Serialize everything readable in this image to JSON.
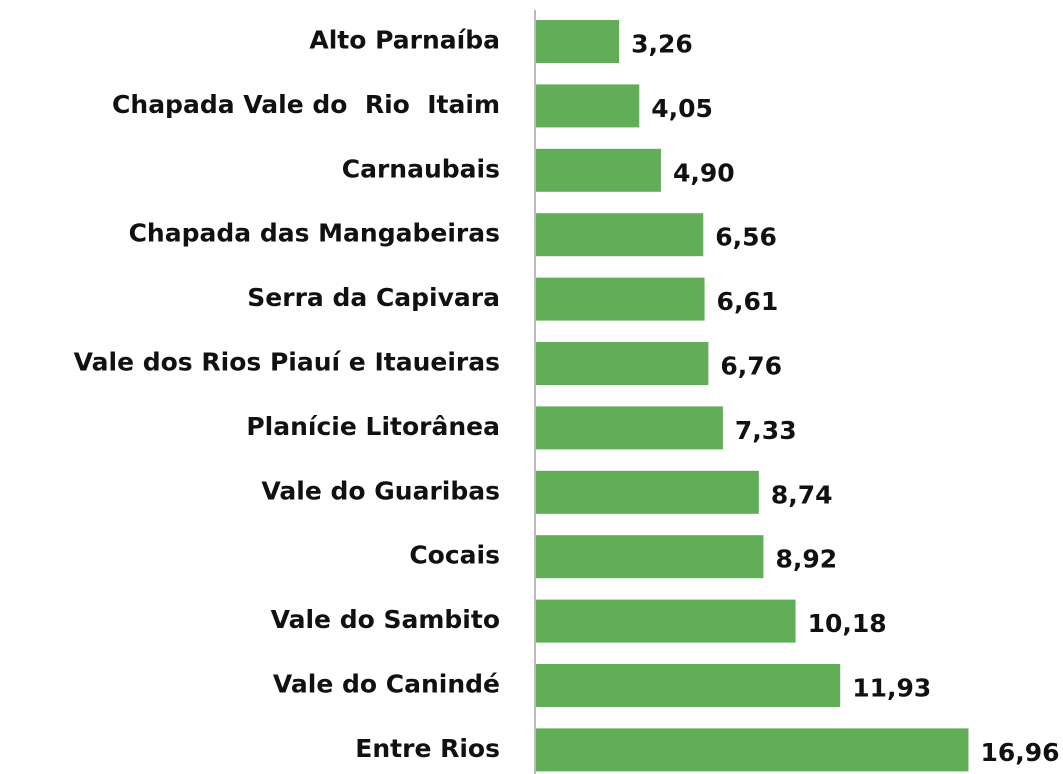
{
  "chart_data": {
    "type": "bar",
    "orientation": "horizontal",
    "categories": [
      "Alto Parnaíba",
      "Chapada Vale do  Rio  Itaim",
      "Carnaubais",
      "Chapada das Mangabeiras",
      "Serra da Capivara",
      "Vale dos Rios Piauí e Itaueiras",
      "Planície Litorânea",
      "Vale do Guaribas",
      "Cocais",
      "Vale do Sambito",
      "Vale do Canindé",
      "Entre Rios"
    ],
    "values": [
      3.26,
      4.05,
      4.9,
      6.56,
      6.61,
      6.76,
      7.33,
      8.74,
      8.92,
      10.18,
      11.93,
      16.96
    ],
    "value_labels": [
      "3,26",
      "4,05",
      "4,90",
      "6,56",
      "6,61",
      "6,76",
      "7,33",
      "8,74",
      "8,92",
      "10,18",
      "11,93",
      "16,96"
    ],
    "color": "#62ad57"
  }
}
